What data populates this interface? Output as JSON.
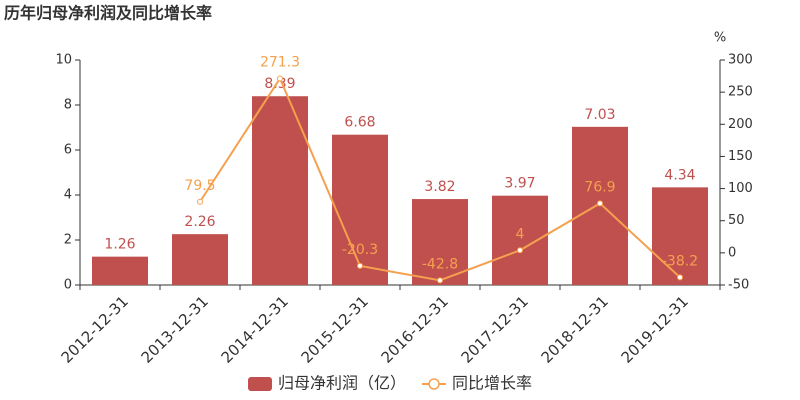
{
  "chart_data": {
    "type": "bar",
    "title": "历年归母净利润及同比增长率",
    "y2_label": "%",
    "categories": [
      "2012-12-31",
      "2013-12-31",
      "2014-12-31",
      "2015-12-31",
      "2016-12-31",
      "2017-12-31",
      "2018-12-31",
      "2019-12-31"
    ],
    "series": [
      {
        "name": "归母净利润（亿）",
        "type": "bar",
        "color": "#c0504e",
        "label_color": "#c0504e",
        "values": [
          1.26,
          2.26,
          8.39,
          6.68,
          3.82,
          3.97,
          7.03,
          4.34
        ]
      },
      {
        "name": "同比增长率",
        "type": "line",
        "axis": "y2",
        "color": "#f5a04e",
        "label_color": "#f5a04e",
        "values": [
          null,
          79.5,
          271.3,
          -20.3,
          -42.8,
          4,
          76.9,
          -38.2
        ]
      }
    ],
    "ylim": [
      0,
      10
    ],
    "yticks": [
      0,
      2,
      4,
      6,
      8,
      10
    ],
    "y2lim": [
      -50,
      300
    ],
    "y2ticks": [
      -50,
      0,
      50,
      100,
      150,
      200,
      250,
      300
    ],
    "grid": false
  }
}
